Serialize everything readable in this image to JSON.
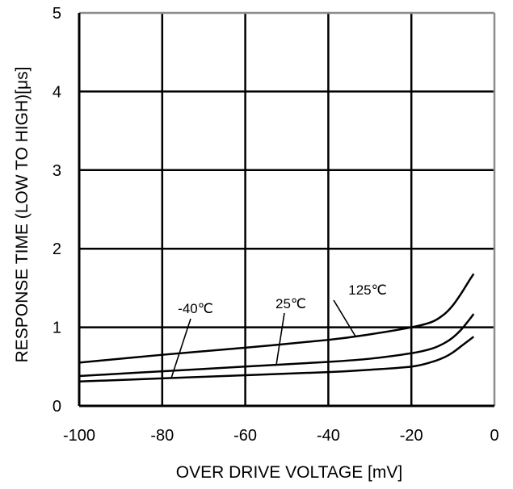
{
  "chart_data": {
    "type": "line",
    "title": "",
    "xlabel": "OVER DRIVE VOLTAGE [mV]",
    "ylabel": "RESPONSE  TIME (LOW TO HIGH)[μs]",
    "xlim": [
      -100,
      0
    ],
    "ylim": [
      0,
      5
    ],
    "xticks": [
      "-100",
      "-80",
      "-60",
      "-40",
      "-20",
      "0"
    ],
    "yticks": [
      "0",
      "1",
      "2",
      "3",
      "4",
      "5"
    ],
    "grid": true,
    "series": [
      {
        "name": "125℃",
        "x": [
          -100,
          -80,
          -60,
          -40,
          -30,
          -20,
          -15,
          -12,
          -10,
          -8,
          -6,
          -5
        ],
        "y": [
          0.55,
          0.65,
          0.74,
          0.84,
          0.91,
          1.0,
          1.07,
          1.17,
          1.28,
          1.43,
          1.6,
          1.68
        ]
      },
      {
        "name": "25℃",
        "x": [
          -100,
          -80,
          -60,
          -40,
          -30,
          -20,
          -15,
          -12,
          -10,
          -8,
          -6,
          -5
        ],
        "y": [
          0.38,
          0.44,
          0.5,
          0.56,
          0.6,
          0.67,
          0.73,
          0.8,
          0.87,
          0.97,
          1.1,
          1.17
        ]
      },
      {
        "name": "-40℃",
        "x": [
          -100,
          -80,
          -60,
          -40,
          -30,
          -20,
          -15,
          -12,
          -10,
          -8,
          -6,
          -5
        ],
        "y": [
          0.31,
          0.35,
          0.39,
          0.43,
          0.46,
          0.5,
          0.56,
          0.62,
          0.68,
          0.76,
          0.84,
          0.88
        ]
      }
    ],
    "annotations": [
      {
        "text": "125℃",
        "series": "125℃"
      },
      {
        "text": "25℃",
        "series": "25℃"
      },
      {
        "text": "-40℃",
        "series": "-40℃"
      }
    ]
  }
}
